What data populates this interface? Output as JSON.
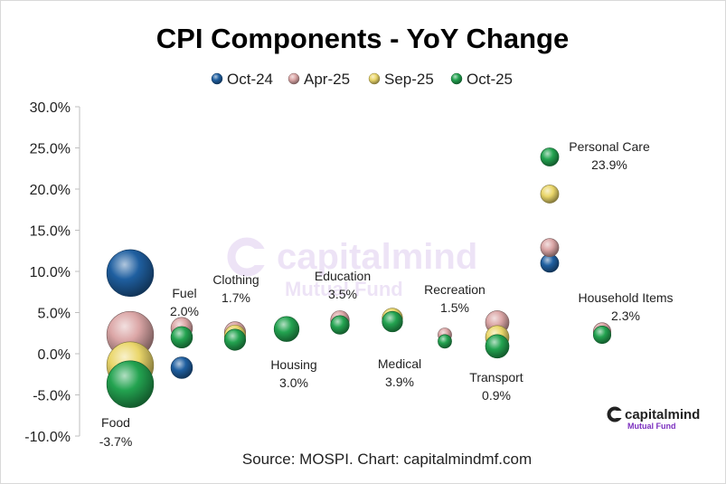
{
  "chart_data": {
    "type": "bubble",
    "title": "CPI Components - YoY Change",
    "source": "Source: MOSPI. Chart: capitalmindmf.com",
    "ylim": [
      -10,
      30
    ],
    "yticks": [
      30,
      25,
      20,
      15,
      10,
      5,
      0,
      -5,
      -10
    ],
    "ytick_labels": [
      "30.0%",
      "25.0%",
      "20.0%",
      "15.0%",
      "10.0%",
      "5.0%",
      "0.0%",
      "-5.0%",
      "-10.0%"
    ],
    "series": [
      {
        "name": "Oct-24",
        "color": "#1f5fa0",
        "values": [
          9.8,
          -1.7,
          null,
          null,
          null,
          null,
          null,
          null,
          11.0,
          null
        ]
      },
      {
        "name": "Apr-25",
        "color": "#dba6a6",
        "values": [
          2.3,
          3.1,
          2.6,
          null,
          4.1,
          null,
          2.3,
          3.8,
          12.9,
          2.7
        ]
      },
      {
        "name": "Sep-25",
        "color": "#ead66a",
        "values": [
          -1.4,
          null,
          2.2,
          null,
          null,
          4.3,
          null,
          2.0,
          19.4,
          null
        ]
      },
      {
        "name": "Oct-25",
        "color": "#23a350",
        "values": [
          -3.7,
          2.0,
          1.7,
          3.0,
          3.5,
          3.9,
          1.5,
          0.9,
          23.9,
          2.3
        ]
      }
    ],
    "categories": [
      "Food",
      "Fuel",
      "Clothing",
      "Housing",
      "Education",
      "Medical",
      "Recreation",
      "Transport",
      "Personal Care",
      "Household Items"
    ],
    "weights": [
      45.9,
      6.8,
      6.5,
      10.1,
      4.5,
      5.9,
      1.7,
      8.6,
      4.2,
      3.8
    ],
    "annotations": [
      {
        "category": "Food",
        "label": "Food",
        "value": "-3.7%"
      },
      {
        "category": "Fuel",
        "label": "Fuel",
        "value": "2.0%"
      },
      {
        "category": "Clothing",
        "label": "Clothing",
        "value": "1.7%"
      },
      {
        "category": "Housing",
        "label": "Housing",
        "value": "3.0%"
      },
      {
        "category": "Education",
        "label": "Education",
        "value": "3.5%"
      },
      {
        "category": "Medical",
        "label": "Medical",
        "value": "3.9%"
      },
      {
        "category": "Recreation",
        "label": "Recreation",
        "value": "1.5%"
      },
      {
        "category": "Transport",
        "label": "Transport",
        "value": "0.9%"
      },
      {
        "category": "Personal Care",
        "label": "Personal Care",
        "value": "23.9%"
      },
      {
        "category": "Household Items",
        "label": "Household Items",
        "value": "2.3%"
      }
    ],
    "legend_position": "top-center",
    "grid": false
  },
  "watermark": {
    "center_brand": "capitalmind",
    "center_sub": "Mutual Fund",
    "corner_brand": "capitalmind",
    "corner_sub": "Mutual Fund",
    "brand_color": "#7b2fbf"
  }
}
